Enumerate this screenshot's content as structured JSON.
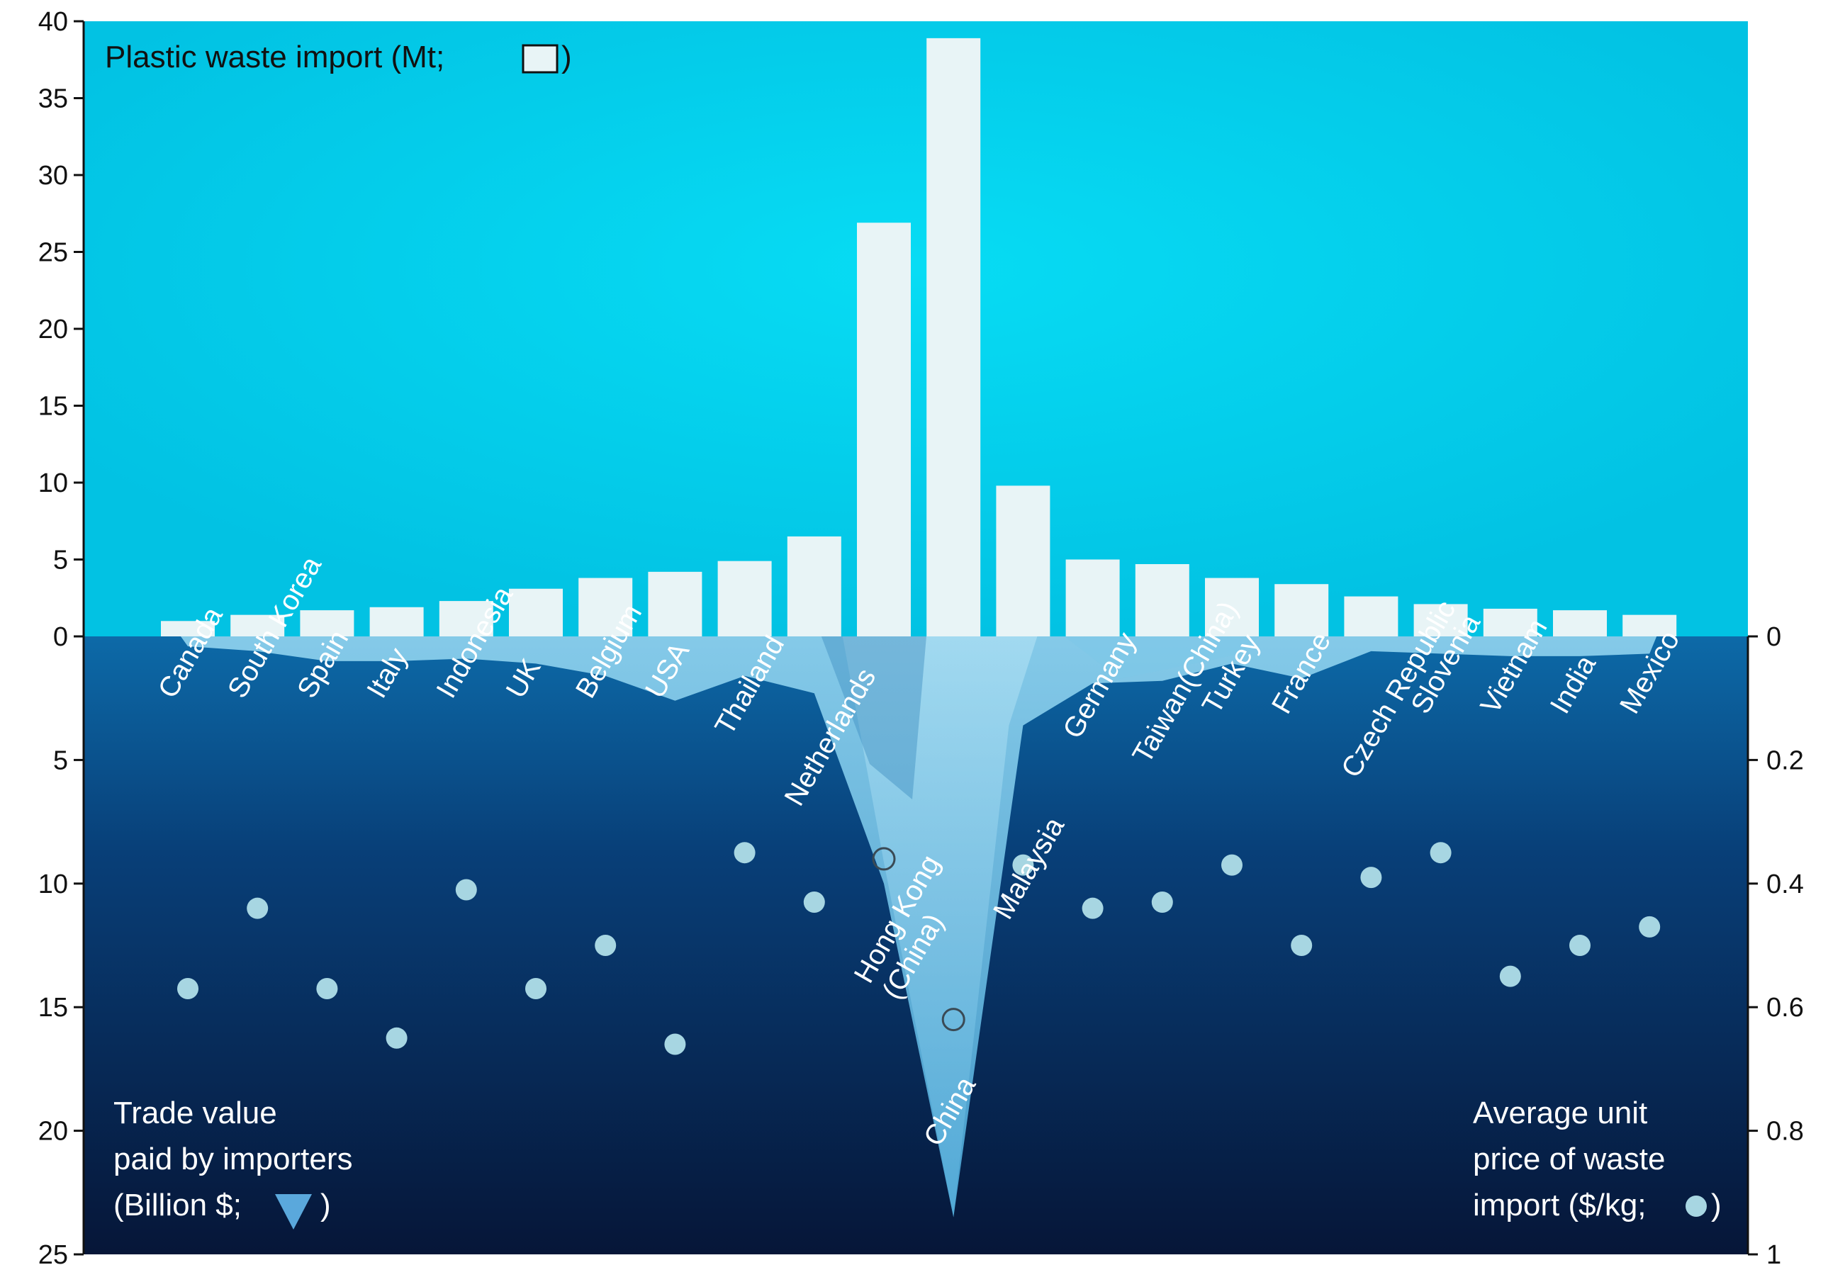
{
  "chart_data": {
    "type": "bar",
    "categories": [
      "Canada",
      "South Korea",
      "Spain",
      "Italy",
      "Indonesia",
      "UK",
      "Belgium",
      "USA",
      "Thailand",
      "Netherlands",
      "Hong Kong (China)",
      "China",
      "Malaysia",
      "Germany",
      "Taiwan(China)",
      "Turkey",
      "France",
      "Czech Republic",
      "Slovenia",
      "Vietnam",
      "India",
      "Mexico"
    ],
    "series": [
      {
        "name": "Plastic waste import (Mt)",
        "axis": "left-upper",
        "values": [
          1.0,
          1.4,
          1.7,
          1.9,
          2.3,
          3.1,
          3.8,
          4.2,
          4.9,
          6.5,
          26.9,
          38.9,
          9.8,
          5.0,
          4.7,
          3.8,
          3.4,
          2.6,
          2.1,
          1.8,
          1.7,
          1.4
        ]
      },
      {
        "name": "Trade value paid by importers (Billion $)",
        "axis": "left-lower",
        "values": [
          0.4,
          0.6,
          1.0,
          1.0,
          0.9,
          1.1,
          1.6,
          2.6,
          1.6,
          2.3,
          10.0,
          23.5,
          3.6,
          1.9,
          1.8,
          1.1,
          1.7,
          0.6,
          0.7,
          0.8,
          0.8,
          0.7
        ]
      },
      {
        "name": "Average unit price of waste import ($/kg)",
        "axis": "right",
        "values": [
          0.57,
          0.44,
          0.57,
          0.65,
          0.41,
          0.57,
          0.5,
          0.66,
          0.35,
          0.43,
          0.36,
          0.62,
          0.37,
          0.44,
          0.43,
          0.37,
          0.5,
          0.39,
          0.35,
          0.55,
          0.5,
          0.47
        ]
      }
    ],
    "axes": {
      "left_upper": {
        "range": [
          0,
          40
        ],
        "ticks": [
          "0",
          "5",
          "10",
          "15",
          "20",
          "25",
          "30",
          "35",
          "40"
        ]
      },
      "left_lower": {
        "range": [
          0,
          25
        ],
        "ticks": [
          "5",
          "10",
          "15",
          "20",
          "25"
        ],
        "inverted": true
      },
      "right": {
        "range": [
          0,
          1
        ],
        "ticks": [
          "0",
          "0.2",
          "0.4",
          "0.6",
          "0.8",
          "1"
        ],
        "inverted": true
      }
    },
    "labels": {
      "top_legend": "Plastic waste import (Mt;",
      "top_legend_close": ")",
      "left_title_lines": [
        "Trade value",
        "paid by importers",
        "(Billion $;",
        ")"
      ],
      "right_title_lines": [
        "Average unit",
        "price of waste",
        "import ($/kg;",
        ")"
      ]
    },
    "colors": {
      "sky": "#04c8e8",
      "sky_center": "#07d8f2",
      "deep_top": "#0b5fa0",
      "deep_bottom": "#07173d",
      "bar": "#e8f4f6",
      "ice": "#5ab6e0",
      "ice_light": "#a6dcf2",
      "dot": "#a7d6e2",
      "text_light": "#ffffff",
      "text_dark": "#111111"
    }
  }
}
